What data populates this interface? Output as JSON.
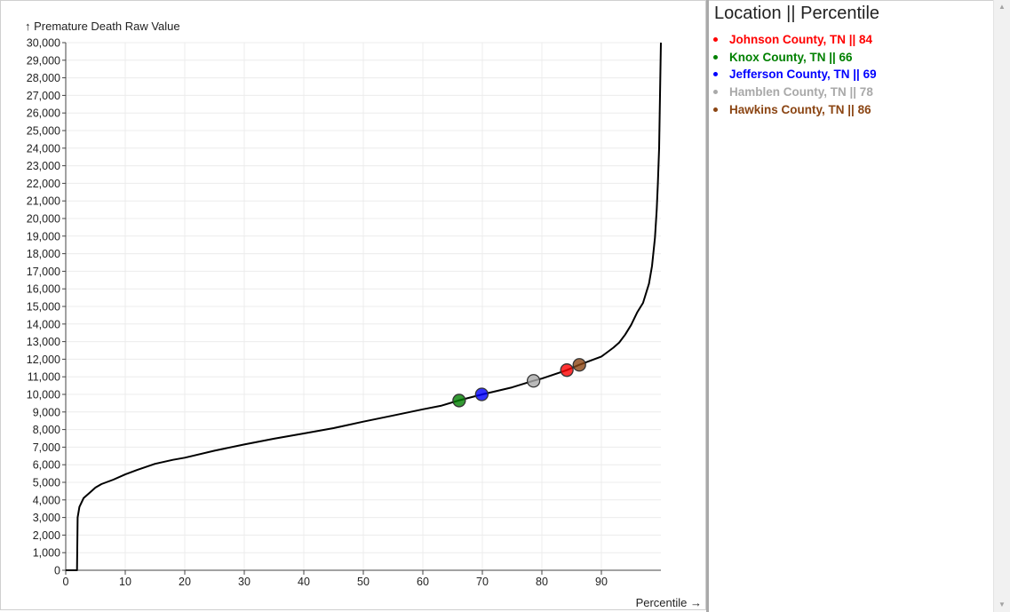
{
  "chart_data": {
    "type": "line",
    "ylabel": "↑ Premature Death Raw Value",
    "xlabel": "Percentile →",
    "xlim": [
      0,
      100
    ],
    "ylim": [
      0,
      30000
    ],
    "x_ticks": [
      0,
      10,
      20,
      30,
      40,
      50,
      60,
      70,
      80,
      90
    ],
    "y_ticks": [
      0,
      1000,
      2000,
      3000,
      4000,
      5000,
      6000,
      7000,
      8000,
      9000,
      10000,
      11000,
      12000,
      13000,
      14000,
      15000,
      16000,
      17000,
      18000,
      19000,
      20000,
      21000,
      22000,
      23000,
      24000,
      25000,
      26000,
      27000,
      28000,
      29000,
      30000
    ],
    "y_tick_labels": [
      "0",
      "1,000",
      "2,000",
      "3,000",
      "4,000",
      "5,000",
      "6,000",
      "7,000",
      "8,000",
      "9,000",
      "10,000",
      "11,000",
      "12,000",
      "13,000",
      "14,000",
      "15,000",
      "16,000",
      "17,000",
      "18,000",
      "19,000",
      "20,000",
      "21,000",
      "22,000",
      "23,000",
      "24,000",
      "25,000",
      "26,000",
      "27,000",
      "28,000",
      "29,000",
      "30,000"
    ],
    "grid": true,
    "curve": {
      "x": [
        0,
        1.9,
        2.0,
        2.3,
        3,
        4,
        5,
        6,
        8,
        10,
        12,
        15,
        18,
        20,
        25,
        30,
        35,
        40,
        45,
        50,
        55,
        60,
        63,
        66,
        70,
        75,
        78.5,
        80,
        84.2,
        86.3,
        88,
        90,
        91,
        92,
        93,
        94,
        95,
        96,
        97,
        98,
        98.5,
        99,
        99.3,
        99.5,
        99.7,
        99.85,
        100
      ],
      "y": [
        0,
        0,
        3000,
        3600,
        4100,
        4400,
        4700,
        4900,
        5150,
        5450,
        5700,
        6050,
        6280,
        6400,
        6800,
        7150,
        7480,
        7780,
        8080,
        8450,
        8800,
        9150,
        9350,
        9650,
        10000,
        10400,
        10770,
        10900,
        11380,
        11680,
        11900,
        12150,
        12400,
        12650,
        12950,
        13400,
        13950,
        14650,
        15200,
        16300,
        17300,
        18900,
        20500,
        22000,
        24000,
        27000,
        30000
      ],
      "color": "#000000"
    },
    "highlights": [
      {
        "location": "Johnson County, TN",
        "percentile": 84,
        "x": 84.2,
        "y": 11380,
        "color": "#ff0000"
      },
      {
        "location": "Knox County, TN",
        "percentile": 66,
        "x": 66.1,
        "y": 9650,
        "color": "#008000"
      },
      {
        "location": "Jefferson County, TN",
        "percentile": 69,
        "x": 69.9,
        "y": 10000,
        "color": "#0000ff"
      },
      {
        "location": "Hamblen County, TN",
        "percentile": 78,
        "x": 78.6,
        "y": 10770,
        "color": "#a9a9a9"
      },
      {
        "location": "Hawkins County, TN",
        "percentile": 86,
        "x": 86.3,
        "y": 11680,
        "color": "#8b4513"
      }
    ]
  },
  "legend": {
    "title": "Location || Percentile",
    "items": [
      {
        "label": "Johnson County, TN || 84",
        "color": "#ff0000"
      },
      {
        "label": "Knox County, TN || 66",
        "color": "#008000"
      },
      {
        "label": "Jefferson County, TN || 69",
        "color": "#0000ff"
      },
      {
        "label": "Hamblen County, TN || 78",
        "color": "#a9a9a9"
      },
      {
        "label": "Hawkins County, TN || 86",
        "color": "#8b4513"
      }
    ]
  },
  "scrollbar": {
    "up_icon": "triangle-up-icon",
    "down_icon": "triangle-down-icon"
  }
}
